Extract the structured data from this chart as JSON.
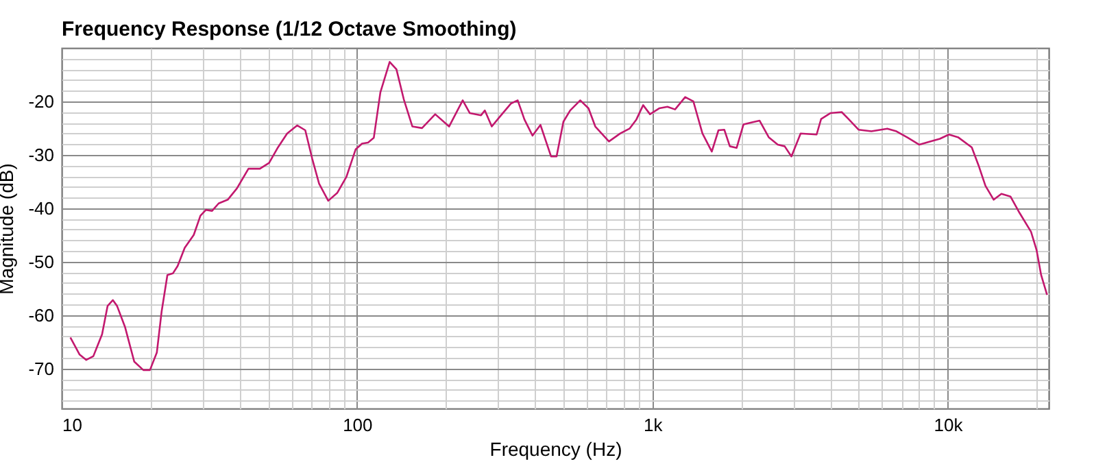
{
  "chart_data": {
    "type": "line",
    "title": "Frequency Response (1/12 Octave Smoothing)",
    "xlabel": "Frequency (Hz)",
    "ylabel": "Magnitude (dB)",
    "log": "x",
    "grid": true,
    "xlim": [
      10,
      22000
    ],
    "xticks": [
      10,
      {
        "value": 20,
        "label": null
      },
      {
        "value": 30,
        "label": null
      },
      {
        "value": 40,
        "label": null
      },
      {
        "value": 50,
        "label": null
      },
      {
        "value": 60,
        "label": null
      },
      {
        "value": 70,
        "label": null
      },
      {
        "value": 80,
        "label": null
      },
      {
        "value": 90,
        "label": null
      },
      100,
      {
        "value": 200,
        "label": null
      },
      {
        "value": 300,
        "label": null
      },
      {
        "value": 400,
        "label": null
      },
      {
        "value": 500,
        "label": null
      },
      {
        "value": 600,
        "label": null
      },
      {
        "value": 700,
        "label": null
      },
      {
        "value": 800,
        "label": null
      },
      {
        "value": 900,
        "label": null
      },
      {
        "value": 1000,
        "label": "1k"
      },
      {
        "value": 2000,
        "label": null
      },
      {
        "value": 3000,
        "label": null
      },
      {
        "value": 4000,
        "label": null
      },
      {
        "value": 5000,
        "label": null
      },
      {
        "value": 6000,
        "label": null
      },
      {
        "value": 7000,
        "label": null
      },
      {
        "value": 8000,
        "label": null
      },
      {
        "value": 9000,
        "label": null
      },
      {
        "value": 10000,
        "label": "10k"
      },
      {
        "value": 20000,
        "label": null
      }
    ],
    "ylim": [
      -77.5,
      -10
    ],
    "yticks": [
      {
        "value": -76,
        "label": null
      },
      {
        "value": -74,
        "label": null
      },
      {
        "value": -72,
        "label": null
      },
      -70,
      {
        "value": -68,
        "label": null
      },
      {
        "value": -66,
        "label": null
      },
      {
        "value": -64,
        "label": null
      },
      {
        "value": -62,
        "label": null
      },
      -60,
      {
        "value": -58,
        "label": null
      },
      {
        "value": -56,
        "label": null
      },
      {
        "value": -54,
        "label": null
      },
      {
        "value": -52,
        "label": null
      },
      -50,
      {
        "value": -48,
        "label": null
      },
      {
        "value": -46,
        "label": null
      },
      {
        "value": -44,
        "label": null
      },
      {
        "value": -42,
        "label": null
      },
      -40,
      {
        "value": -38,
        "label": null
      },
      {
        "value": -36,
        "label": null
      },
      {
        "value": -34,
        "label": null
      },
      {
        "value": -32,
        "label": null
      },
      -30,
      {
        "value": -28,
        "label": null
      },
      {
        "value": -26,
        "label": null
      },
      {
        "value": -24,
        "label": null
      },
      {
        "value": -22,
        "label": null
      },
      -20,
      {
        "value": -18,
        "label": null
      },
      {
        "value": -16,
        "label": null
      },
      {
        "value": -14,
        "label": null
      },
      {
        "value": -12,
        "label": null
      }
    ],
    "x": [
      10.7,
      11.5,
      12.1,
      12.8,
      13.7,
      14.3,
      14.9,
      15.4,
      16.4,
      17.6,
      18.9,
      19.9,
      21.0,
      21.8,
      22.8,
      23.8,
      24.7,
      26.1,
      28.0,
      29.5,
      30.8,
      32.3,
      34.0,
      36.5,
      39.2,
      42.9,
      46.9,
      50.4,
      54.0,
      58.0,
      62.7,
      66.8,
      70.5,
      74.4,
      79.9,
      85.8,
      92.1,
      98.9,
      104,
      109,
      114,
      120,
      129,
      136,
      144,
      154,
      166,
      184,
      205,
      228,
      241,
      263,
      271,
      286,
      303,
      332,
      350,
      369,
      393,
      418,
      454,
      474,
      500,
      527,
      570,
      608,
      641,
      713,
      779,
      837,
      883,
      931,
      982,
      1055,
      1125,
      1194,
      1292,
      1377,
      1478,
      1590,
      1675,
      1753,
      1830,
      1930,
      2036,
      2187,
      2307,
      2478,
      2659,
      2806,
      2958,
      3178,
      3600,
      3729,
      4006,
      4378,
      4617,
      4992,
      5519,
      6247,
      6708,
      7330,
      8017,
      8759,
      9410,
      10100,
      10840,
      12070,
      12730,
      13430,
      14320,
      15210,
      16320,
      17530,
      19160,
      20000,
      20730,
      21710
    ],
    "series": [
      {
        "color": "#c2186e",
        "values": [
          -64.2,
          -67.4,
          -68.4,
          -67.7,
          -63.6,
          -58.3,
          -57.2,
          -58.3,
          -62.3,
          -68.7,
          -70.3,
          -70.3,
          -67.0,
          -59.3,
          -52.5,
          -52.2,
          -50.8,
          -47.4,
          -45.0,
          -41.4,
          -40.3,
          -40.5,
          -39.1,
          -38.4,
          -36.3,
          -32.6,
          -32.6,
          -31.5,
          -28.6,
          -26.0,
          -24.5,
          -25.4,
          -30.7,
          -35.4,
          -38.6,
          -37.1,
          -34.1,
          -29.0,
          -27.9,
          -27.7,
          -26.8,
          -18.3,
          -12.6,
          -14.0,
          -19.6,
          -24.7,
          -25.0,
          -22.4,
          -24.7,
          -19.8,
          -22.2,
          -22.6,
          -21.7,
          -24.7,
          -23.0,
          -20.4,
          -19.8,
          -23.4,
          -26.4,
          -24.4,
          -30.3,
          -30.3,
          -23.8,
          -21.7,
          -19.8,
          -21.3,
          -24.7,
          -27.5,
          -26.0,
          -25.1,
          -23.4,
          -20.7,
          -22.4,
          -21.3,
          -21.0,
          -21.5,
          -19.2,
          -20.0,
          -26.0,
          -29.4,
          -25.4,
          -25.3,
          -28.4,
          -28.7,
          -24.3,
          -23.9,
          -23.6,
          -26.7,
          -28.1,
          -28.4,
          -30.3,
          -26.0,
          -26.2,
          -23.3,
          -22.2,
          -22.0,
          -23.3,
          -25.3,
          -25.6,
          -25.1,
          -25.6,
          -26.8,
          -28.1,
          -27.5,
          -27.0,
          -26.2,
          -26.7,
          -28.6,
          -32.0,
          -35.8,
          -38.4,
          -37.3,
          -37.8,
          -40.9,
          -44.4,
          -47.8,
          -52.5,
          -56.2
        ]
      }
    ]
  }
}
